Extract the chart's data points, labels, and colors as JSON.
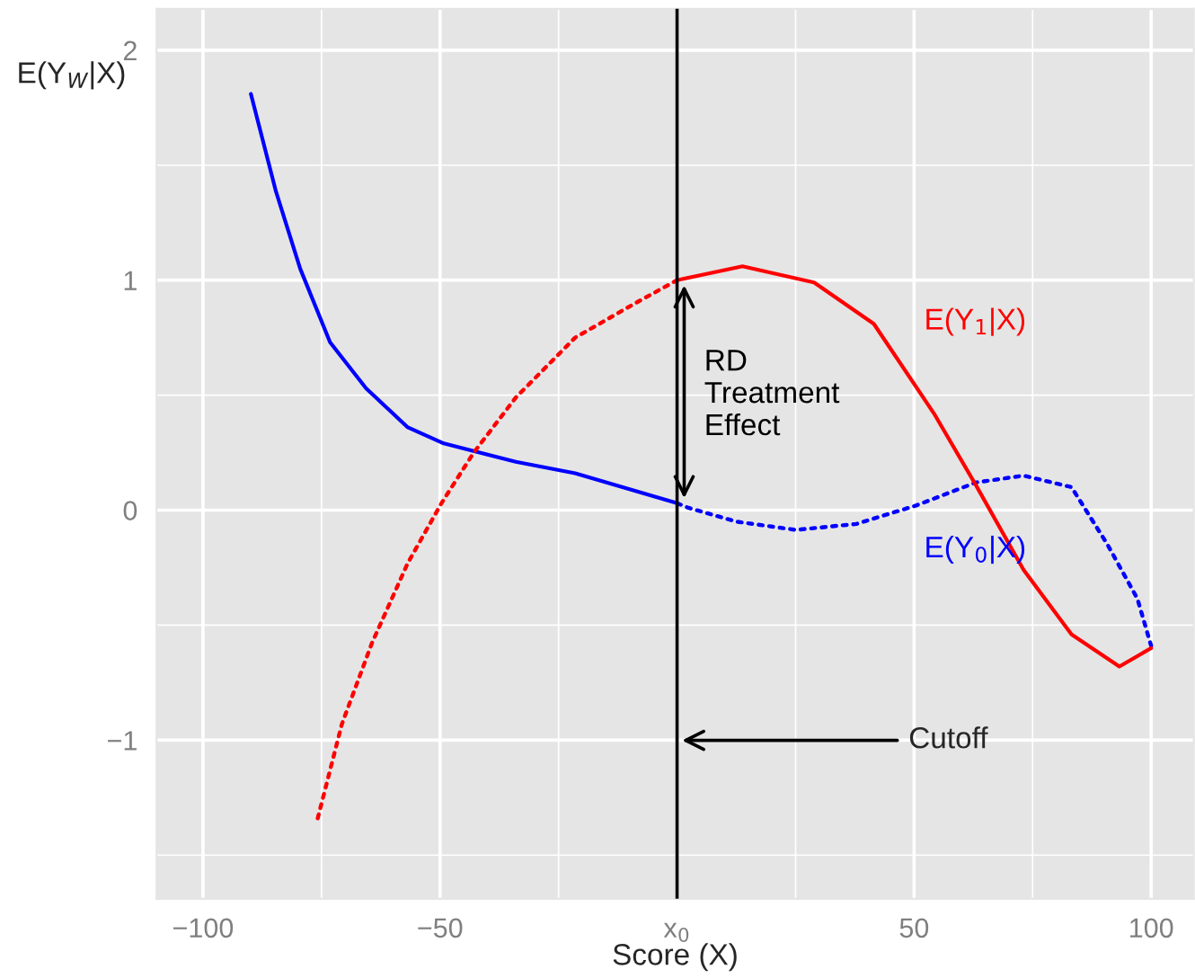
{
  "chart_data": {
    "type": "line",
    "xlabel": "Score (X)",
    "ylabel": "E(Y$_{W}$|X)",
    "xlim": [
      -109.8,
      109
    ],
    "ylim": [
      -1.69,
      2.18
    ],
    "xticks": [
      {
        "value": -100,
        "label": "−100"
      },
      {
        "value": -50,
        "label": "−50"
      },
      {
        "value": 0,
        "label": "x$_{0}$"
      },
      50,
      100
    ],
    "yticks": [
      {
        "value": -1,
        "label": "−1"
      },
      0,
      1,
      2
    ],
    "grid": true,
    "marker": "none",
    "series": [
      {
        "color": "#0000ff",
        "line_style": "solid",
        "x": [
          -89.9,
          -84.6,
          -79.5,
          -73.2,
          -65.6,
          -56.8,
          -49.2,
          -34,
          -21.5,
          0
        ],
        "values": [
          1.81,
          1.385,
          1.05,
          0.73,
          0.53,
          0.36,
          0.29,
          0.21,
          0.16,
          0.03
        ]
      },
      {
        "color": "#0000ff",
        "line_style": "dotted",
        "x": [
          0,
          2.4,
          12.5,
          25.1,
          37.8,
          50.4,
          63,
          73.1,
          83.2,
          90.8,
          97.1,
          100
        ],
        "values": [
          0.03,
          0.01,
          -0.05,
          -0.086,
          -0.06,
          0.02,
          0.12,
          0.15,
          0.1,
          -0.15,
          -0.385,
          -0.59
        ]
      },
      {
        "color": "#ff0000",
        "line_style": "dotted",
        "x": [
          -75.8,
          -70.7,
          -64.4,
          -56.8,
          -49.7,
          -42.9,
          -34,
          -21.5,
          -8.8,
          0
        ],
        "values": [
          -1.34,
          -0.93,
          -0.58,
          -0.23,
          0.03,
          0.25,
          0.49,
          0.75,
          0.9,
          1.0
        ]
      },
      {
        "color": "#ff0000",
        "line_style": "solid",
        "x": [
          0,
          13.8,
          28.9,
          41.5,
          54.2,
          63,
          73.1,
          83.2,
          93.3,
          100
        ],
        "values": [
          1.0,
          1.06,
          0.99,
          0.81,
          0.42,
          0.11,
          -0.26,
          -0.54,
          -0.68,
          -0.6
        ]
      }
    ],
    "ref_lines": [
      {
        "axis": "x",
        "value": 0,
        "color": "#000000"
      }
    ],
    "annotations": [
      "E(Y$_{1}$|X)",
      "E(Y$_{0}$|X)",
      "RD\nTreatment\nEffect",
      "Cutoff"
    ]
  }
}
